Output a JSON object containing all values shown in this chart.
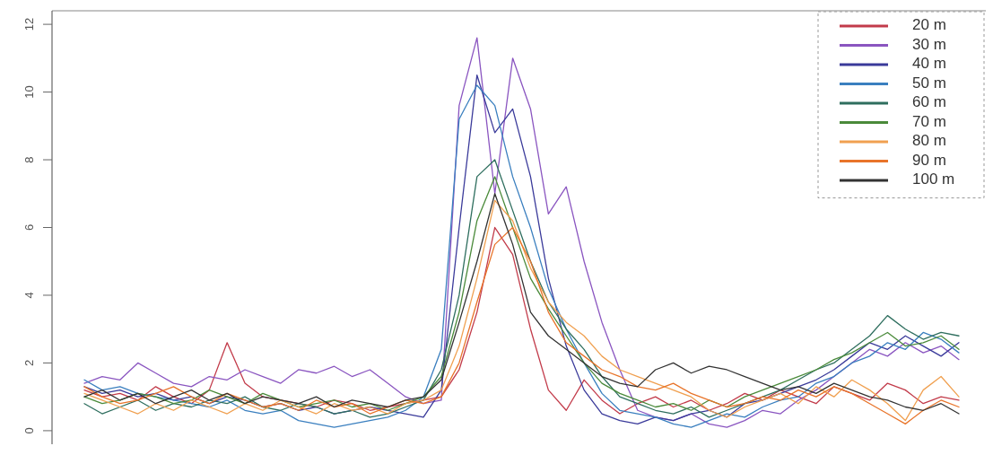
{
  "chart_data": {
    "type": "line",
    "categories": [
      null,
      null,
      null,
      null,
      null,
      null,
      null,
      null,
      null,
      null,
      null,
      null,
      null,
      null,
      null,
      null,
      null,
      null,
      null,
      null,
      null,
      null,
      null,
      null,
      null,
      null,
      null,
      null,
      null,
      null,
      null,
      null,
      null,
      null,
      null,
      null,
      null,
      null,
      null,
      null,
      null,
      null,
      null,
      null,
      null,
      null,
      null,
      null,
      null,
      null
    ],
    "ylim": [
      -0.4,
      12.4
    ],
    "yticks": [
      0,
      2,
      4,
      6,
      8,
      10,
      12
    ],
    "grid": false,
    "legend": "top right",
    "tick_labels": "y",
    "series": [
      {
        "name": "20 m",
        "color": "#c23b4a",
        "values": [
          1.2,
          1.0,
          1.1,
          0.9,
          1.3,
          1.0,
          0.8,
          1.2,
          2.6,
          1.4,
          1.0,
          0.9,
          0.8,
          0.7,
          0.9,
          0.8,
          0.6,
          0.7,
          0.8,
          0.9,
          1.0,
          1.8,
          3.5,
          6.0,
          5.2,
          3.0,
          1.2,
          0.6,
          1.5,
          0.9,
          0.5,
          0.8,
          1.0,
          0.7,
          0.9,
          0.6,
          0.8,
          1.1,
          0.9,
          1.2,
          1.0,
          0.8,
          1.3,
          1.1,
          0.9,
          1.4,
          1.2,
          0.8,
          1.0,
          0.9
        ]
      },
      {
        "name": "30 m",
        "color": "#8a55c0",
        "values": [
          1.4,
          1.6,
          1.5,
          2.0,
          1.7,
          1.4,
          1.3,
          1.6,
          1.5,
          1.8,
          1.6,
          1.4,
          1.8,
          1.7,
          1.9,
          1.6,
          1.8,
          1.4,
          1.0,
          0.8,
          0.9,
          9.6,
          11.6,
          7.0,
          11.0,
          9.5,
          6.4,
          7.2,
          5.0,
          3.2,
          1.8,
          0.6,
          0.4,
          0.3,
          0.5,
          0.2,
          0.1,
          0.3,
          0.6,
          0.5,
          0.9,
          1.2,
          1.6,
          2.0,
          2.4,
          2.2,
          2.6,
          2.3,
          2.5,
          2.1
        ]
      },
      {
        "name": "40 m",
        "color": "#3a3a9a",
        "values": [
          1.3,
          1.1,
          1.2,
          1.0,
          1.1,
          0.9,
          1.0,
          0.8,
          1.0,
          0.9,
          0.7,
          0.8,
          0.6,
          0.7,
          0.5,
          0.6,
          0.7,
          0.6,
          0.5,
          0.4,
          1.2,
          6.0,
          10.5,
          8.8,
          9.5,
          7.5,
          4.5,
          2.5,
          1.2,
          0.5,
          0.3,
          0.2,
          0.4,
          0.3,
          0.5,
          0.6,
          0.4,
          0.8,
          0.9,
          1.1,
          1.3,
          1.5,
          1.8,
          2.2,
          2.6,
          2.4,
          2.8,
          2.5,
          2.2,
          2.6
        ]
      },
      {
        "name": "50 m",
        "color": "#3a7fbf",
        "values": [
          1.5,
          1.2,
          1.3,
          1.1,
          1.0,
          0.9,
          0.8,
          0.7,
          0.9,
          0.6,
          0.5,
          0.6,
          0.3,
          0.2,
          0.1,
          0.2,
          0.3,
          0.4,
          0.6,
          1.0,
          2.4,
          9.2,
          10.2,
          9.6,
          7.5,
          6.0,
          4.2,
          3.0,
          2.0,
          1.1,
          0.6,
          0.5,
          0.4,
          0.2,
          0.1,
          0.3,
          0.5,
          0.4,
          0.7,
          0.9,
          1.0,
          1.4,
          1.6,
          2.0,
          2.2,
          2.6,
          2.4,
          2.9,
          2.7,
          2.3
        ]
      },
      {
        "name": "60 m",
        "color": "#2e6e5e",
        "values": [
          0.8,
          0.5,
          0.7,
          0.9,
          0.6,
          0.8,
          0.7,
          0.9,
          0.8,
          1.0,
          0.7,
          0.6,
          0.8,
          0.7,
          0.5,
          0.6,
          0.4,
          0.5,
          0.7,
          0.9,
          1.8,
          4.0,
          7.5,
          8.0,
          6.5,
          5.0,
          3.8,
          3.0,
          2.4,
          1.6,
          1.0,
          0.8,
          0.6,
          0.5,
          0.7,
          0.4,
          0.6,
          0.8,
          1.0,
          1.2,
          1.5,
          1.8,
          2.0,
          2.4,
          2.8,
          3.4,
          3.0,
          2.7,
          2.9,
          2.8
        ]
      },
      {
        "name": "70 m",
        "color": "#4a8a3a",
        "values": [
          1.0,
          0.8,
          0.9,
          1.1,
          1.0,
          0.8,
          0.9,
          1.2,
          1.0,
          0.8,
          1.1,
          0.9,
          0.7,
          0.8,
          0.9,
          0.7,
          0.8,
          0.6,
          0.8,
          1.0,
          1.6,
          3.5,
          6.2,
          7.5,
          6.0,
          4.5,
          3.6,
          2.8,
          2.0,
          1.4,
          1.1,
          0.9,
          0.7,
          0.8,
          0.6,
          0.9,
          0.7,
          1.0,
          1.2,
          1.4,
          1.6,
          1.8,
          2.1,
          2.3,
          2.6,
          2.9,
          2.5,
          2.6,
          2.8,
          2.4
        ]
      },
      {
        "name": "80 m",
        "color": "#f0a050",
        "values": [
          1.1,
          0.9,
          0.7,
          0.5,
          0.8,
          0.6,
          0.9,
          0.7,
          0.5,
          0.8,
          0.6,
          0.9,
          0.7,
          0.5,
          0.8,
          0.6,
          0.7,
          0.5,
          0.8,
          0.9,
          1.2,
          2.5,
          4.5,
          6.8,
          6.2,
          4.8,
          3.8,
          3.2,
          2.8,
          2.2,
          1.8,
          1.6,
          1.4,
          1.2,
          1.0,
          0.6,
          0.4,
          0.7,
          0.9,
          1.1,
          0.8,
          1.3,
          1.0,
          1.5,
          1.2,
          0.8,
          0.3,
          1.2,
          1.6,
          1.0
        ]
      },
      {
        "name": "90 m",
        "color": "#e8742a",
        "values": [
          1.3,
          1.0,
          0.8,
          0.9,
          1.1,
          1.3,
          1.0,
          0.8,
          1.1,
          0.9,
          0.7,
          0.8,
          0.6,
          0.9,
          0.7,
          0.8,
          0.5,
          0.7,
          0.9,
          0.8,
          1.0,
          2.0,
          3.8,
          5.5,
          6.0,
          5.0,
          3.5,
          2.6,
          2.2,
          1.8,
          1.6,
          1.3,
          1.2,
          1.4,
          1.1,
          0.9,
          0.7,
          0.8,
          1.0,
          0.9,
          1.2,
          1.0,
          1.3,
          1.1,
          0.8,
          0.5,
          0.2,
          0.6,
          0.9,
          0.7
        ]
      },
      {
        "name": "100 m",
        "color": "#333333",
        "values": [
          1.0,
          1.2,
          0.9,
          1.1,
          0.8,
          1.0,
          1.2,
          0.9,
          1.1,
          0.8,
          1.0,
          0.9,
          0.8,
          1.0,
          0.7,
          0.9,
          0.8,
          0.7,
          0.9,
          1.0,
          1.5,
          3.2,
          5.0,
          7.0,
          5.5,
          3.5,
          2.8,
          2.4,
          2.0,
          1.6,
          1.4,
          1.3,
          1.8,
          2.0,
          1.7,
          1.9,
          1.8,
          1.6,
          1.4,
          1.2,
          1.3,
          1.1,
          1.4,
          1.2,
          1.0,
          0.9,
          0.7,
          0.6,
          0.8,
          0.5
        ]
      }
    ]
  }
}
